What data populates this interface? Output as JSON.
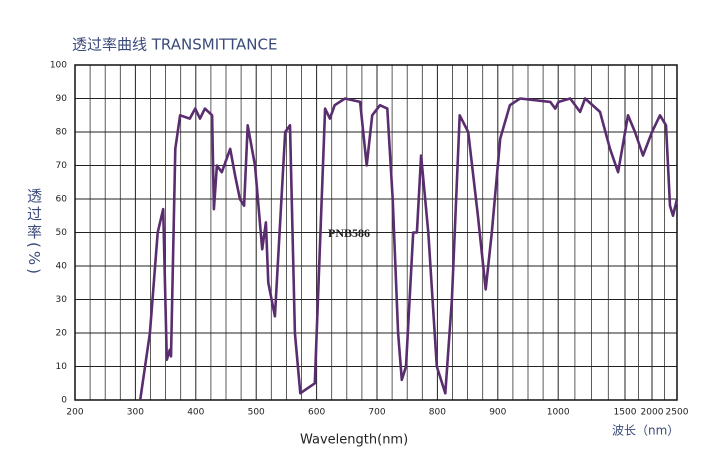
{
  "chart_data": {
    "type": "line",
    "title": "透过率曲线 TRANSMITTANCE",
    "x_label": "Wavelength(nm)",
    "x_label_cn": "波长（nm）",
    "y_label": "透过率(%)",
    "annotation": "PNB586",
    "x": [
      308,
      324,
      337,
      346,
      352,
      357,
      359,
      366,
      374,
      390,
      399,
      407,
      415,
      427,
      430,
      435,
      443,
      457,
      465,
      473,
      480,
      486,
      498,
      510,
      516,
      520,
      531,
      548,
      556,
      564,
      573,
      581,
      597,
      614,
      622,
      630,
      647,
      672,
      683,
      692,
      705,
      717,
      726,
      735,
      741,
      748,
      760,
      766,
      773,
      785,
      799,
      813,
      824,
      837,
      851,
      867,
      880,
      890,
      904,
      920,
      937,
      987,
      995,
      1003,
      1090,
      1164,
      1201,
      1313,
      1388,
      1448,
      1556,
      1685,
      1833,
      2000,
      2160,
      2280,
      2360,
      2420,
      2500
    ],
    "series": [
      {
        "name": "PNB586",
        "color": "#5a2d6e",
        "values": [
          0,
          20,
          50,
          57,
          12,
          15,
          13,
          75,
          85,
          84,
          87,
          84,
          87,
          85,
          57,
          70,
          68,
          75,
          67,
          60,
          58,
          82,
          70,
          45,
          53,
          35,
          25,
          80,
          82,
          20,
          2,
          3,
          5,
          87,
          84,
          88,
          90,
          89,
          70,
          85,
          88,
          87,
          60,
          20,
          6,
          10,
          50,
          50,
          73,
          50,
          10,
          2,
          30,
          85,
          80,
          55,
          33,
          50,
          78,
          88,
          90,
          89,
          87,
          89,
          90,
          86,
          90,
          86,
          75,
          68,
          85,
          80,
          73,
          80,
          85,
          82,
          58,
          55,
          60
        ]
      }
    ],
    "xlim": [
      200,
      2500
    ],
    "ylim": [
      0,
      100
    ],
    "xticks": [
      200,
      300,
      400,
      500,
      600,
      700,
      800,
      900,
      1000,
      1500,
      2000,
      2500
    ],
    "yticks": [
      0,
      10,
      20,
      30,
      40,
      50,
      60,
      70,
      80,
      90,
      100
    ],
    "grid": true
  }
}
